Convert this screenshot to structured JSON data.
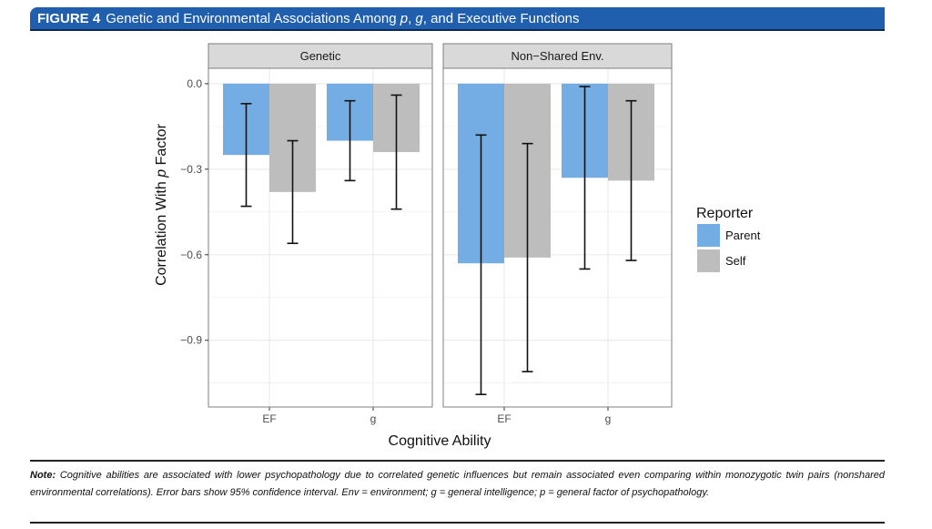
{
  "figure": {
    "label": "FIGURE 4",
    "title_parts": [
      "Genetic and Environmental Associations Among ",
      "p",
      ", ",
      "g",
      ", and Executive Functions"
    ],
    "note_label": "Note:",
    "note_text": "Cognitive abilities are associated with lower psychopathology due to correlated genetic influences but remain associated even comparing within monozygotic twin pairs (nonshared environmental correlations). Error bars show 95% confidence interval. Env = environment; g = general intelligence; p = general factor of psychopathology."
  },
  "chart_data": {
    "type": "bar",
    "facets": [
      "Genetic",
      "Non−Shared Env."
    ],
    "categories": [
      "EF",
      "g"
    ],
    "xlabel": "Cognitive Ability",
    "ylabel_parts": [
      "Correlation With ",
      "p",
      " Factor"
    ],
    "ylim": [
      -1.134,
      0.054
    ],
    "yticks": [
      0.0,
      -0.3,
      -0.6,
      -0.9
    ],
    "ytick_labels": [
      "0.0",
      "−0.3",
      "−0.6",
      "−0.9"
    ],
    "grid": true,
    "legend": {
      "title": "Reporter",
      "position": "right"
    },
    "series": [
      {
        "name": "Parent",
        "color": "#74ade4",
        "values": [
          [
            -0.25,
            -0.2
          ],
          [
            -0.63,
            -0.33
          ]
        ],
        "ci_low": [
          [
            -0.43,
            -0.34
          ],
          [
            -1.09,
            -0.65
          ]
        ],
        "ci_high": [
          [
            -0.07,
            -0.06
          ],
          [
            -0.18,
            -0.01
          ]
        ]
      },
      {
        "name": "Self",
        "color": "#bdbdbd",
        "values": [
          [
            -0.38,
            -0.24
          ],
          [
            -0.61,
            -0.34
          ]
        ],
        "ci_low": [
          [
            -0.56,
            -0.44
          ],
          [
            -1.01,
            -0.62
          ]
        ],
        "ci_high": [
          [
            -0.2,
            -0.04
          ],
          [
            -0.21,
            -0.06
          ]
        ]
      }
    ]
  }
}
